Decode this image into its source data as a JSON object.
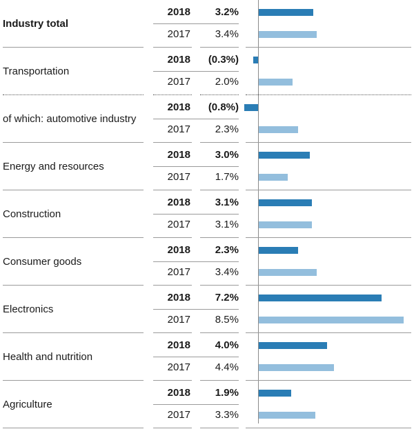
{
  "chart_data": {
    "type": "bar",
    "orientation": "horizontal",
    "series_colors": {
      "2018": "#2a7db5",
      "2017": "#93bedd"
    },
    "rows": [
      {
        "label": "Industry total",
        "bold": true,
        "y2018": "2018",
        "v2018": 3.2,
        "t2018": "3.2%",
        "y2017": "2017",
        "v2017": 3.4,
        "t2017": "3.4%"
      },
      {
        "label": "Transportation",
        "bold": false,
        "y2018": "2018",
        "v2018": -0.3,
        "t2018": "(0.3%)",
        "y2017": "2017",
        "v2017": 2.0,
        "t2017": "2.0%"
      },
      {
        "label": "of which: automotive industry",
        "bold": false,
        "y2018": "2018",
        "v2018": -0.8,
        "t2018": "(0.8%)",
        "y2017": "2017",
        "v2017": 2.3,
        "t2017": "2.3%"
      },
      {
        "label": "Energy and resources",
        "bold": false,
        "y2018": "2018",
        "v2018": 3.0,
        "t2018": "3.0%",
        "y2017": "2017",
        "v2017": 1.7,
        "t2017": "1.7%"
      },
      {
        "label": "Construction",
        "bold": false,
        "y2018": "2018",
        "v2018": 3.1,
        "t2018": "3.1%",
        "y2017": "2017",
        "v2017": 3.1,
        "t2017": "3.1%"
      },
      {
        "label": "Consumer goods",
        "bold": false,
        "y2018": "2018",
        "v2018": 2.3,
        "t2018": "2.3%",
        "y2017": "2017",
        "v2017": 3.4,
        "t2017": "3.4%"
      },
      {
        "label": "Electronics",
        "bold": false,
        "y2018": "2018",
        "v2018": 7.2,
        "t2018": "7.2%",
        "y2017": "2017",
        "v2017": 8.5,
        "t2017": "8.5%"
      },
      {
        "label": "Health and nutrition",
        "bold": false,
        "y2018": "2018",
        "v2018": 4.0,
        "t2018": "4.0%",
        "y2017": "2017",
        "v2017": 4.4,
        "t2017": "4.4%"
      },
      {
        "label": "Agriculture",
        "bold": false,
        "y2018": "2018",
        "v2018": 1.9,
        "t2018": "1.9%",
        "y2017": "2017",
        "v2017": 3.3,
        "t2017": "3.3%"
      }
    ]
  }
}
